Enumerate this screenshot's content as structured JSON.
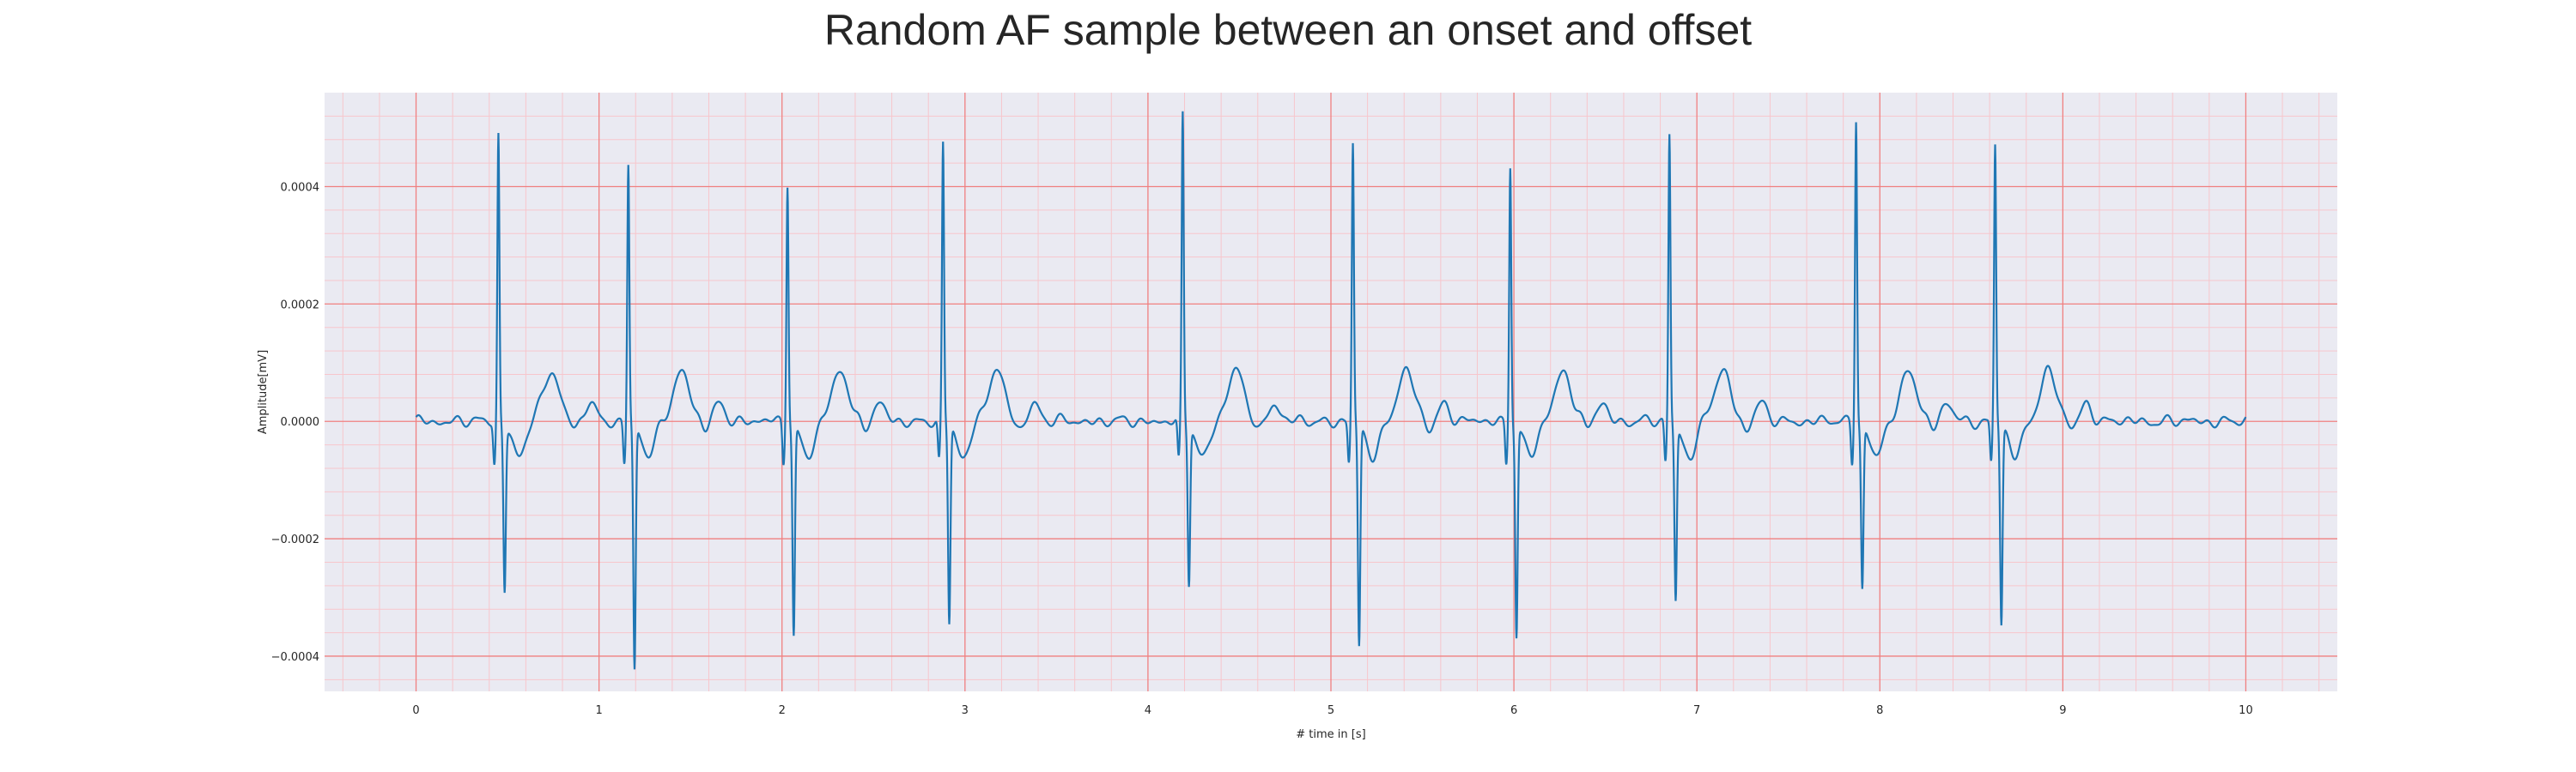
{
  "chart_data": {
    "type": "line",
    "title": "Random AF sample between an onset and offset",
    "xlabel": "# time in [s]",
    "ylabel": "Amplitude[mV]",
    "xlim": [
      -0.5,
      10.5
    ],
    "ylim": [
      -0.00046,
      0.00056
    ],
    "x_ticks": [
      0,
      1,
      2,
      3,
      4,
      5,
      6,
      7,
      8,
      9,
      10
    ],
    "x_tick_labels": [
      "0",
      "1",
      "2",
      "3",
      "4",
      "5",
      "6",
      "7",
      "8",
      "9",
      "10"
    ],
    "y_ticks": [
      -0.0004,
      -0.0002,
      0.0,
      0.0002,
      0.0004
    ],
    "y_tick_labels": [
      "−0.0004",
      "−0.0002",
      "0.0000",
      "0.0002",
      "0.0004"
    ],
    "grid": "major and minor",
    "colors": {
      "line": "#1f77b4",
      "plot_background": "#eaeaf2",
      "major_grid": "#f08080",
      "minor_grid": "#f7c6cc"
    },
    "series": [
      {
        "beats": [
          {
            "t": 0.45,
            "peak": 0.00049,
            "trough": -0.00028
          },
          {
            "t": 1.16,
            "peak": 0.00044,
            "trough": -0.00042
          },
          {
            "t": 2.03,
            "peak": 0.00041,
            "trough": -0.00036
          },
          {
            "t": 2.88,
            "peak": 0.00047,
            "trough": -0.00034
          },
          {
            "t": 4.19,
            "peak": 0.00052,
            "trough": -0.00027
          },
          {
            "t": 5.12,
            "peak": 0.00047,
            "trough": -0.00038
          },
          {
            "t": 5.98,
            "peak": 0.00044,
            "trough": -0.00036
          },
          {
            "t": 6.85,
            "peak": 0.00049,
            "trough": -0.0003
          },
          {
            "t": 7.87,
            "peak": 0.00052,
            "trough": -0.00028
          },
          {
            "t": 8.63,
            "peak": 0.00047,
            "trough": -0.00034
          }
        ],
        "t_range": [
          0,
          10
        ]
      }
    ]
  }
}
